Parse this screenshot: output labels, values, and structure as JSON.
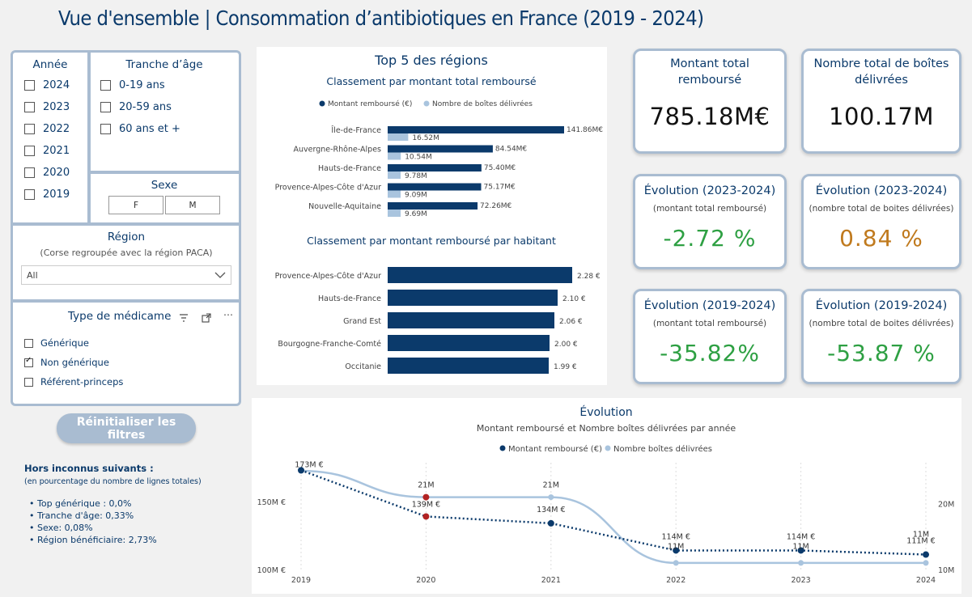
{
  "page": {
    "title": "Vue d'ensemble | Consommation d’antibiotiques en France (2019 - 2024)"
  },
  "filters": {
    "annee": {
      "title": "Année",
      "options": [
        "2024",
        "2023",
        "2022",
        "2021",
        "2020",
        "2019"
      ]
    },
    "age": {
      "title": "Tranche d’âge",
      "options": [
        "0-19 ans",
        "20-59 ans",
        "60 ans et +"
      ]
    },
    "sexe": {
      "title": "Sexe",
      "options": [
        "F",
        "M"
      ]
    },
    "region": {
      "title": "Région",
      "subtitle": "(Corse regroupée avec la région PACA)",
      "selected": "All"
    },
    "medicament": {
      "title": "Type de médicame",
      "options": [
        {
          "label": "Générique",
          "checked": false
        },
        {
          "label": "Non générique",
          "checked": true
        },
        {
          "label": "Référent-princeps",
          "checked": false
        }
      ]
    },
    "reset_label": "Réinitialiser les filtres"
  },
  "notes": {
    "title": "Hors inconnus suivants :",
    "subtitle": "(en pourcentage du nombre de lignes totales)",
    "items": [
      "• Top générique : 0,0%",
      "• Tranche d'âge: 0,33%",
      "• Sexe: 0,08%",
      "• Région bénéficiaire: 2,73%"
    ]
  },
  "top5": {
    "title": "Top 5 des régions",
    "subtitle1": "Classement par montant total remboursé",
    "subtitle2": "Classement par montant remboursé par habitant",
    "legend": [
      "Montant remboursé (€)",
      "Nombre de boîtes délivrées"
    ]
  },
  "kpis": {
    "total_amount": {
      "title": "Montant total remboursé",
      "value": "785.18M€"
    },
    "total_boxes": {
      "title": "Nombre total de boîtes délivrées",
      "value": "100.17M"
    },
    "evo_2324_amount": {
      "title": "Évolution (2023-2024)",
      "sub": "(montant total remboursé)",
      "value": "-2.72 %"
    },
    "evo_2324_boxes": {
      "title": "Évolution (2023-2024)",
      "sub": "(nombre total de boites délivrées)",
      "value": "0.84 %"
    },
    "evo_1924_amount": {
      "title": "Évolution (2019-2024)",
      "sub": "(montant total remboursé)",
      "value": "-35.82%"
    },
    "evo_1924_boxes": {
      "title": "Évolution (2019-2024)",
      "sub": "(nombre total de boites délivrées)",
      "value": "-53.87 %"
    }
  },
  "evolution": {
    "title": "Évolution",
    "subtitle": "Montant remboursé et Nombre boîtes délivrées par année",
    "legend": [
      "Montant remboursé (€)",
      "Nombre boîtes délivrées"
    ]
  },
  "colors": {
    "navy": "#0b3a6b",
    "light": "#a9c4de",
    "green": "#2ea043",
    "orange": "#c07a1e",
    "red": "#b22222"
  },
  "chart_data": [
    {
      "type": "bar",
      "title": "Classement par montant total remboursé",
      "categories": [
        "Île-de-France",
        "Auvergne-Rhône-Alpes",
        "Hauts-de-France",
        "Provence-Alpes-Côte d'Azur",
        "Nouvelle-Aquitaine"
      ],
      "series": [
        {
          "name": "Montant remboursé (€)",
          "values": [
            141.86,
            84.54,
            75.4,
            75.17,
            72.26
          ],
          "labels": [
            "141.86M€",
            "84.54M€",
            "75.40M€",
            "75.17M€",
            "72.26M€"
          ]
        },
        {
          "name": "Nombre de boîtes délivrées",
          "values": [
            16.52,
            10.54,
            9.78,
            9.09,
            9.69
          ],
          "labels": [
            "16.52M",
            "10.54M",
            "9.78M",
            "9.09M",
            "9.69M"
          ]
        }
      ]
    },
    {
      "type": "bar",
      "title": "Classement par montant remboursé par habitant",
      "categories": [
        "Provence-Alpes-Côte d'Azur",
        "Hauts-de-France",
        "Grand Est",
        "Bourgogne-Franche-Comté",
        "Occitanie"
      ],
      "values": [
        2.28,
        2.1,
        2.06,
        2.0,
        1.99
      ],
      "labels": [
        "2.28 €",
        "2.10 €",
        "2.06 €",
        "2.00 €",
        "1.99 €"
      ]
    },
    {
      "type": "line",
      "title": "Évolution",
      "x": [
        "2019",
        "2020",
        "2021",
        "2022",
        "2023",
        "2024"
      ],
      "series": [
        {
          "name": "Montant remboursé (€)",
          "values": [
            173,
            139,
            134,
            114,
            114,
            111
          ],
          "labels": [
            "173M €",
            "139M €",
            "134M €",
            "114M €",
            "114M €",
            "111M €"
          ]
        },
        {
          "name": "Nombre boîtes délivrées",
          "values": [
            25,
            21,
            21,
            11,
            11,
            11
          ],
          "labels": [
            "",
            "21M",
            "21M",
            "11M",
            "11M",
            "11M"
          ]
        }
      ],
      "y_left_ticks": [
        "150M €",
        "100M €"
      ],
      "y_right_ticks": [
        "20M",
        "10M"
      ],
      "ylim_left": [
        100,
        175
      ],
      "ylim_right": [
        10,
        25.5
      ]
    }
  ]
}
